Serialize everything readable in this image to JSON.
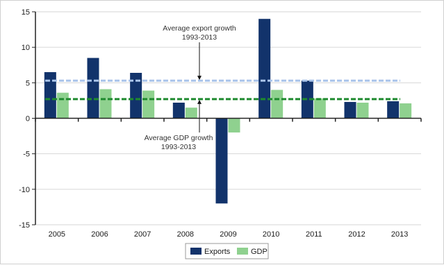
{
  "chart_data": {
    "type": "bar",
    "categories": [
      "2005",
      "2006",
      "2007",
      "2008",
      "2009",
      "2010",
      "2011",
      "2012",
      "2013"
    ],
    "series": [
      {
        "name": "Exports",
        "color": "#12336b",
        "values": [
          6.5,
          8.5,
          6.4,
          2.2,
          -12.0,
          14.0,
          5.3,
          2.3,
          2.4
        ]
      },
      {
        "name": "GDP",
        "color": "#8fd18f",
        "values": [
          3.6,
          4.1,
          3.9,
          1.5,
          -2.0,
          4.0,
          2.8,
          2.2,
          2.1
        ]
      }
    ],
    "reference_lines": [
      {
        "label_line1": "Average export growth",
        "label_line2": "1993-2013",
        "value": 5.3,
        "color": "#a9c4ea",
        "style": "dashed"
      },
      {
        "label_line1": "Average GDP growth",
        "label_line2": "1993-2013",
        "value": 2.7,
        "color": "#1e8a2e",
        "style": "dashed"
      }
    ],
    "yticks": [
      15,
      10,
      5,
      0,
      -5,
      -10,
      -15
    ],
    "ylim": [
      -15,
      15
    ],
    "grid": true,
    "legend_position": "bottom",
    "xlabel": "",
    "ylabel": "",
    "title": ""
  }
}
